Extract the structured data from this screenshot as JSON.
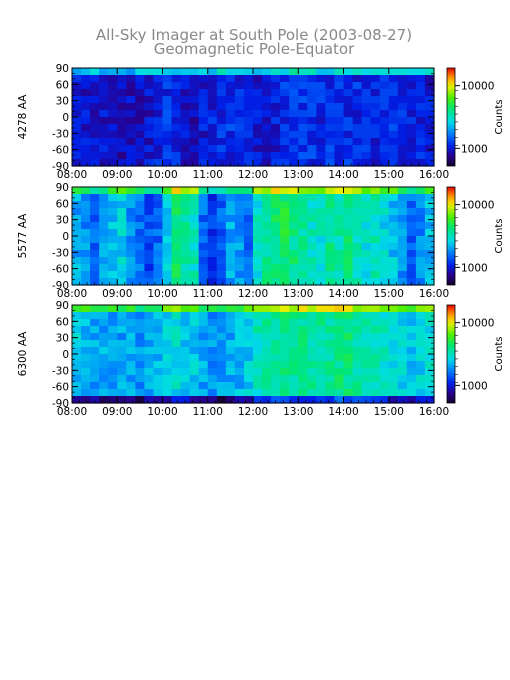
{
  "title": "All-Sky Imager at South Pole (2003-08-27)",
  "subtitle": "Geomagnetic Pole-Equator",
  "colorbar_label": "Counts",
  "chart_data": [
    {
      "type": "heatmap",
      "ylabel": "4278 AA",
      "x_ticks": [
        "08:00",
        "09:00",
        "10:00",
        "11:00",
        "12:00",
        "13:00",
        "14:00",
        "15:00",
        "16:00"
      ],
      "y_ticks": [
        90,
        60,
        30,
        0,
        -30,
        -60,
        -90
      ],
      "ylim": [
        -90,
        90
      ],
      "colorbar_ticks": [
        10000,
        1000
      ],
      "color_scale": "log",
      "column_levels": [
        0.18,
        0.17,
        0.16,
        0.17,
        0.15,
        0.14,
        0.15,
        0.16,
        0.17,
        0.2,
        0.22,
        0.19,
        0.16,
        0.15,
        0.18,
        0.2,
        0.21,
        0.22,
        0.2,
        0.18,
        0.17,
        0.16,
        0.19,
        0.22,
        0.24,
        0.23,
        0.22,
        0.21,
        0.22,
        0.23,
        0.22,
        0.21,
        0.2,
        0.2,
        0.21,
        0.22,
        0.21,
        0.2,
        0.19,
        0.18
      ]
    },
    {
      "type": "heatmap",
      "ylabel": "5577 AA",
      "x_ticks": [
        "08:00",
        "09:00",
        "10:00",
        "11:00",
        "12:00",
        "13:00",
        "14:00",
        "15:00",
        "16:00"
      ],
      "y_ticks": [
        90,
        60,
        30,
        0,
        -30,
        -60,
        -90
      ],
      "ylim": [
        -90,
        90
      ],
      "colorbar_ticks": [
        10000,
        1000
      ],
      "color_scale": "log",
      "column_levels": [
        0.38,
        0.35,
        0.3,
        0.36,
        0.42,
        0.44,
        0.36,
        0.3,
        0.26,
        0.3,
        0.45,
        0.58,
        0.52,
        0.5,
        0.3,
        0.24,
        0.28,
        0.38,
        0.36,
        0.3,
        0.48,
        0.55,
        0.58,
        0.6,
        0.56,
        0.54,
        0.5,
        0.48,
        0.55,
        0.52,
        0.56,
        0.5,
        0.48,
        0.5,
        0.45,
        0.42,
        0.35,
        0.3,
        0.34,
        0.4
      ]
    },
    {
      "type": "heatmap",
      "ylabel": "6300 AA",
      "x_ticks": [
        "08:00",
        "09:00",
        "10:00",
        "11:00",
        "12:00",
        "13:00",
        "14:00",
        "15:00",
        "16:00"
      ],
      "y_ticks": [
        90,
        60,
        30,
        0,
        -30,
        -60,
        -90
      ],
      "ylim": [
        -90,
        90
      ],
      "colorbar_ticks": [
        10000,
        1000
      ],
      "color_scale": "log",
      "column_levels": [
        0.42,
        0.4,
        0.38,
        0.38,
        0.36,
        0.37,
        0.38,
        0.36,
        0.38,
        0.4,
        0.44,
        0.46,
        0.44,
        0.42,
        0.38,
        0.36,
        0.36,
        0.38,
        0.4,
        0.42,
        0.5,
        0.54,
        0.55,
        0.56,
        0.55,
        0.54,
        0.54,
        0.53,
        0.55,
        0.56,
        0.56,
        0.54,
        0.52,
        0.5,
        0.48,
        0.46,
        0.44,
        0.42,
        0.44,
        0.46
      ]
    }
  ]
}
